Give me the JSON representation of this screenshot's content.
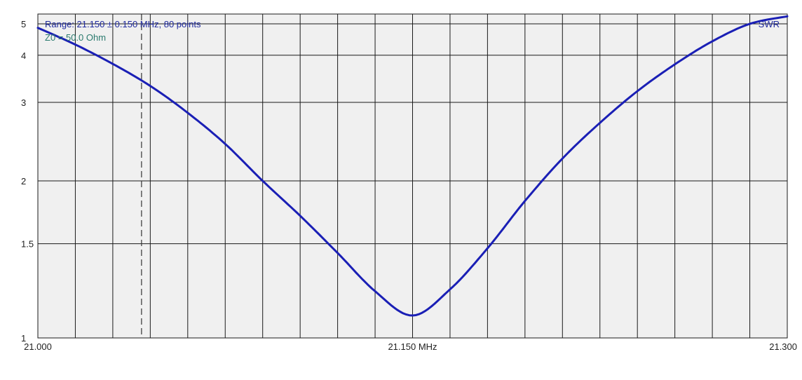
{
  "chart_data": {
    "type": "line",
    "title": "",
    "range_text": "Range: 21.150 ± 0.150 MHz, 80 points",
    "z0_text": "Z0 = 50.0 Ohm",
    "series_label": "SWR",
    "xlim": [
      21.0,
      21.3
    ],
    "x_tick_labels": [
      {
        "x": 21.0,
        "label": "21.000"
      },
      {
        "x": 21.15,
        "label": "21.150 MHz"
      },
      {
        "x": 21.3,
        "label": "21.300"
      }
    ],
    "x_grid_step": 0.015,
    "y_ticks": [
      {
        "swr": 1,
        "label": "1"
      },
      {
        "swr": 1.5,
        "label": "1.5"
      },
      {
        "swr": 2,
        "label": "2"
      },
      {
        "swr": 3,
        "label": "3"
      },
      {
        "swr": 4,
        "label": "4"
      },
      {
        "swr": 5,
        "label": "5"
      }
    ],
    "ylim": [
      1,
      5.4
    ],
    "y_scale": "swr (reflection-coefficient scaled)",
    "grid": true,
    "marker_x": 21.0415,
    "colors": {
      "line": "#1a1fb5",
      "range_text": "#1f2a9e",
      "z0_text": "#2a7a6e",
      "series_label": "#1f2a9e",
      "grid": "#1a1a1a",
      "background": "#f0f0f0"
    },
    "series": [
      {
        "name": "SWR",
        "x": [
          21.0,
          21.015,
          21.03,
          21.045,
          21.06,
          21.075,
          21.09,
          21.105,
          21.12,
          21.135,
          21.15,
          21.165,
          21.18,
          21.195,
          21.21,
          21.225,
          21.24,
          21.255,
          21.27,
          21.285,
          21.3
        ],
        "y": [
          4.85,
          4.3,
          3.78,
          3.3,
          2.83,
          2.4,
          2.0,
          1.7,
          1.44,
          1.22,
          1.1,
          1.23,
          1.47,
          1.82,
          2.23,
          2.68,
          3.2,
          3.77,
          4.4,
          5.0,
          5.3
        ]
      }
    ]
  }
}
